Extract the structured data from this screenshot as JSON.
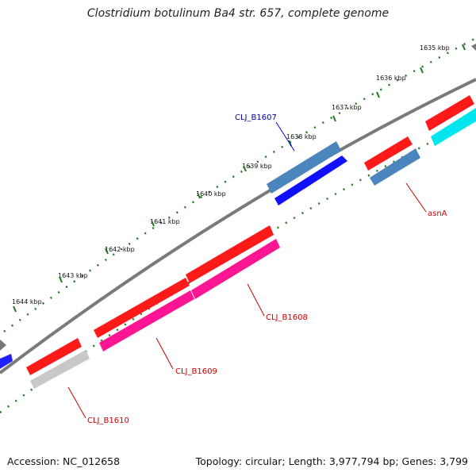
{
  "title": "Clostridium botulinum Ba4 str. 657, complete genome",
  "accession_text": "Accession: NC_012658",
  "summary_text": "Topology: circular; Length: 3,977,794 bp; Genes: 3,799",
  "ticks": [
    "1635 kbp",
    "1636 kbp",
    "1637 kbp",
    "1638 kbp",
    "1639 kbp",
    "1640 kbp",
    "1641 kbp",
    "1642 kbp",
    "1643 kbp",
    "1644 kbp"
  ],
  "gene_labels": {
    "clj_b1607": "CLJ_B1607",
    "asna": "asnA",
    "clj_b1608": "CLJ_B1608",
    "clj_b1609": "CLJ_B1609",
    "clj_b1610": "CLJ_B1610"
  },
  "colors": {
    "backbone": "#808080",
    "tick_dots": "#1f7a1f",
    "gene_red": "#ff0000",
    "gene_blue": "#0000ff",
    "gene_steelblue": "#4682b4",
    "gene_pink": "#ff1493",
    "gene_cyan": "#00e5ee",
    "gene_gray": "#bdbdbd",
    "label_blue": "#0000aa",
    "label_red": "#cc0000"
  }
}
